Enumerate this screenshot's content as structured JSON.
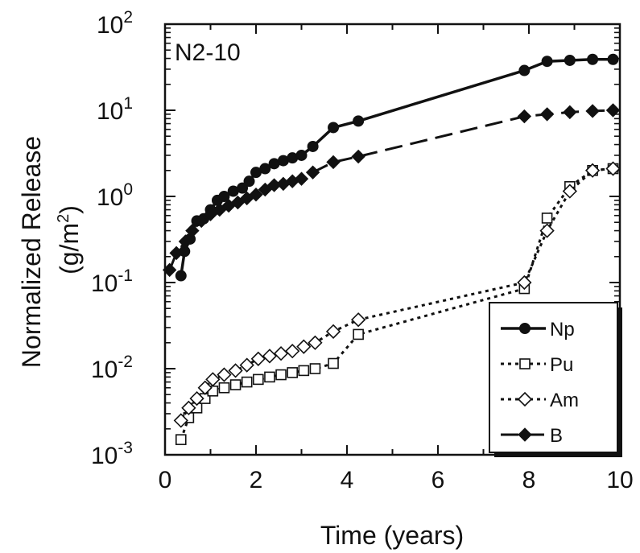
{
  "chart_data": {
    "type": "line",
    "panel_label": "N2-10",
    "xlabel": "Time (years)",
    "ylabel_line1": "Normalized Release",
    "ylabel_line2_pre": "(g/m",
    "ylabel_line2_sup": "2",
    "ylabel_line2_post": ")",
    "xlim": [
      0,
      10
    ],
    "ylim": [
      0.001,
      100
    ],
    "yscale": "log",
    "x_ticks": [
      0,
      2,
      4,
      6,
      8,
      10
    ],
    "x_tick_labels": [
      "0",
      "2",
      "4",
      "6",
      "8",
      "10"
    ],
    "y_ticks": [
      {
        "value": 0.001,
        "base": "10",
        "exp": "-3"
      },
      {
        "value": 0.01,
        "base": "10",
        "exp": "-2"
      },
      {
        "value": 0.1,
        "base": "10",
        "exp": "-1"
      },
      {
        "value": 1,
        "base": "10",
        "exp": "0"
      },
      {
        "value": 10,
        "base": "10",
        "exp": "1"
      },
      {
        "value": 100,
        "base": "10",
        "exp": "2"
      }
    ],
    "grid": false,
    "legend_position": "bottom-right",
    "series": [
      {
        "name": "Np",
        "line": "solid",
        "marker": "circle-filled",
        "x": [
          0.35,
          0.43,
          0.55,
          0.7,
          0.85,
          1.0,
          1.15,
          1.3,
          1.5,
          1.7,
          1.85,
          2.0,
          2.2,
          2.4,
          2.6,
          2.8,
          3.0,
          3.25,
          3.7,
          4.25,
          7.9,
          8.4,
          8.9,
          9.4,
          9.85
        ],
        "y": [
          0.12,
          0.23,
          0.32,
          0.52,
          0.55,
          0.7,
          0.9,
          1.0,
          1.15,
          1.25,
          1.5,
          1.9,
          2.1,
          2.4,
          2.6,
          2.8,
          3.0,
          3.8,
          6.3,
          7.5,
          29,
          37,
          38,
          39,
          39
        ]
      },
      {
        "name": "Pu",
        "line": "dotted",
        "marker": "square-open",
        "x": [
          0.35,
          0.52,
          0.7,
          0.88,
          1.05,
          1.3,
          1.55,
          1.8,
          2.05,
          2.3,
          2.55,
          2.8,
          3.05,
          3.3,
          3.7,
          4.25,
          7.9,
          8.4,
          8.9,
          9.4,
          9.85
        ],
        "y": [
          0.0015,
          0.0027,
          0.0035,
          0.0045,
          0.0055,
          0.006,
          0.0065,
          0.007,
          0.0075,
          0.008,
          0.0085,
          0.009,
          0.0095,
          0.01,
          0.0115,
          0.025,
          0.085,
          0.56,
          1.3,
          2.0,
          2.1
        ]
      },
      {
        "name": "Am",
        "line": "dotted",
        "marker": "diamond-open",
        "x": [
          0.35,
          0.52,
          0.7,
          0.88,
          1.05,
          1.3,
          1.55,
          1.8,
          2.05,
          2.3,
          2.55,
          2.8,
          3.05,
          3.3,
          3.7,
          4.25,
          7.9,
          8.4,
          8.9,
          9.4,
          9.85
        ],
        "y": [
          0.0025,
          0.0035,
          0.0045,
          0.006,
          0.0075,
          0.0085,
          0.0095,
          0.011,
          0.013,
          0.014,
          0.015,
          0.016,
          0.018,
          0.02,
          0.027,
          0.037,
          0.1,
          0.4,
          1.15,
          2.0,
          2.1
        ]
      },
      {
        "name": "B",
        "line": "dashed",
        "marker": "diamond-filled",
        "x": [
          0.1,
          0.25,
          0.45,
          0.6,
          0.8,
          1.0,
          1.2,
          1.4,
          1.6,
          1.8,
          2.0,
          2.2,
          2.4,
          2.6,
          2.8,
          3.0,
          3.25,
          3.7,
          4.25,
          7.9,
          8.4,
          8.9,
          9.4,
          9.85
        ],
        "y": [
          0.14,
          0.22,
          0.3,
          0.4,
          0.52,
          0.62,
          0.7,
          0.78,
          0.85,
          0.95,
          1.05,
          1.2,
          1.35,
          1.4,
          1.5,
          1.6,
          1.9,
          2.5,
          2.9,
          8.5,
          9.0,
          9.5,
          9.8,
          10
        ]
      }
    ]
  }
}
